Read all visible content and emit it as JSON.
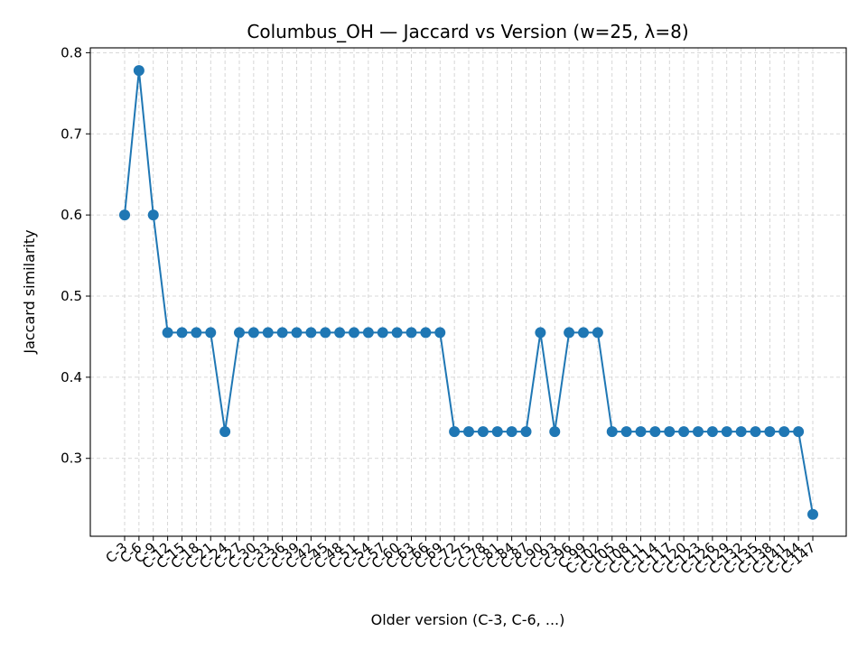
{
  "chart_data": {
    "type": "line",
    "title": "Columbus_OH — Jaccard vs Version (w=25, λ=8)",
    "xlabel": "Older version (C-3, C-6, ...)",
    "ylabel": "Jaccard similarity",
    "categories": [
      "C-3",
      "C-6",
      "C-9",
      "C-12",
      "C-15",
      "C-18",
      "C-21",
      "C-24",
      "C-27",
      "C-30",
      "C-33",
      "C-36",
      "C-39",
      "C-42",
      "C-45",
      "C-48",
      "C-51",
      "C-54",
      "C-57",
      "C-60",
      "C-63",
      "C-66",
      "C-69",
      "C-72",
      "C-75",
      "C-78",
      "C-81",
      "C-84",
      "C-87",
      "C-90",
      "C-93",
      "C-96",
      "C-99",
      "C-102",
      "C-105",
      "C-108",
      "C-111",
      "C-114",
      "C-117",
      "C-120",
      "C-123",
      "C-126",
      "C-129",
      "C-132",
      "C-135",
      "C-138",
      "C-141",
      "C-144",
      "C-147"
    ],
    "series": [
      {
        "values": [
          0.6,
          0.778,
          0.6,
          0.455,
          0.455,
          0.455,
          0.455,
          0.333,
          0.455,
          0.455,
          0.455,
          0.455,
          0.455,
          0.455,
          0.455,
          0.455,
          0.455,
          0.455,
          0.455,
          0.455,
          0.455,
          0.455,
          0.455,
          0.333,
          0.333,
          0.333,
          0.333,
          0.333,
          0.333,
          0.455,
          0.333,
          0.455,
          0.455,
          0.455,
          0.333,
          0.333,
          0.333,
          0.333,
          0.333,
          0.333,
          0.333,
          0.333,
          0.333,
          0.333,
          0.333,
          0.333,
          0.333,
          0.333,
          0.231
        ],
        "color": "#1f77b4"
      }
    ],
    "yticks": [
      0.3,
      0.4,
      0.5,
      0.6,
      0.7,
      0.8
    ],
    "ylim": [
      0.204,
      0.806
    ],
    "grid": true,
    "legend": "none"
  }
}
